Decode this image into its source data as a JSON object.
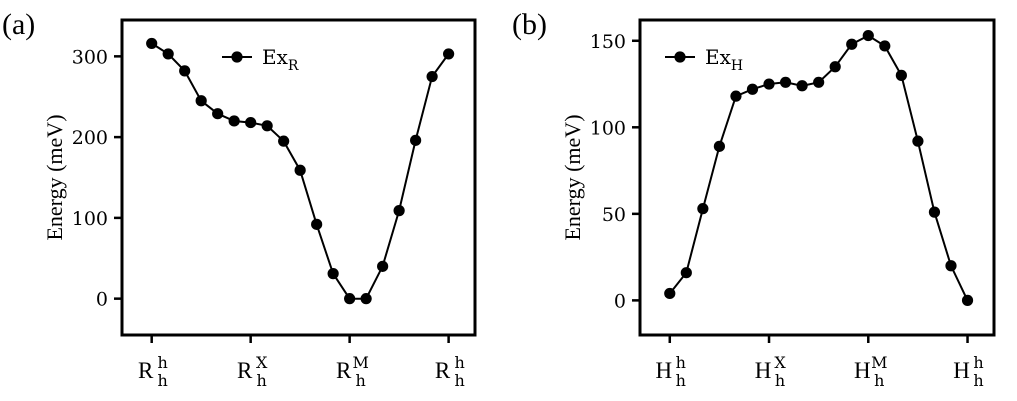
{
  "chart_data": [
    {
      "type": "line",
      "panel_label": "(a)",
      "ylabel": "Energy (meV)",
      "xlabel": "",
      "ylim": [
        -45,
        345
      ],
      "yticks": [
        0,
        100,
        200,
        300
      ],
      "xticks": [
        {
          "x": 0,
          "base": "R",
          "sub": "h",
          "sup": "h"
        },
        {
          "x": 6,
          "base": "R",
          "sub": "h",
          "sup": "X"
        },
        {
          "x": 12,
          "base": "R",
          "sub": "h",
          "sup": "M"
        },
        {
          "x": 18,
          "base": "R",
          "sub": "h",
          "sup": "h"
        }
      ],
      "xlim": [
        -1.8,
        19.6
      ],
      "legend": {
        "base": "Ex",
        "sub": "R",
        "placement": "top-center"
      },
      "series": [
        {
          "name": "ExR",
          "x": [
            0,
            1,
            2,
            3,
            4,
            5,
            6,
            7,
            8,
            9,
            10,
            11,
            12,
            13,
            14,
            15,
            16,
            17,
            18
          ],
          "values": [
            316,
            303,
            282,
            245,
            229,
            220,
            218,
            214,
            195,
            159,
            92,
            31,
            0,
            0,
            40,
            109,
            196,
            275,
            303
          ]
        }
      ]
    },
    {
      "type": "line",
      "panel_label": "(b)",
      "ylabel": "Energy (meV)",
      "xlabel": "",
      "ylim": [
        -20,
        162
      ],
      "yticks": [
        0,
        50,
        100,
        150
      ],
      "xticks": [
        {
          "x": 0,
          "base": "H",
          "sub": "h",
          "sup": "h"
        },
        {
          "x": 6,
          "base": "H",
          "sub": "h",
          "sup": "X"
        },
        {
          "x": 12,
          "base": "H",
          "sub": "h",
          "sup": "M"
        },
        {
          "x": 18,
          "base": "H",
          "sub": "h",
          "sup": "h"
        }
      ],
      "xlim": [
        -1.8,
        19.6
      ],
      "legend": {
        "base": "Ex",
        "sub": "H",
        "placement": "top-left"
      },
      "series": [
        {
          "name": "ExH",
          "x": [
            0,
            1,
            2,
            3,
            4,
            5,
            6,
            7,
            8,
            9,
            10,
            11,
            12,
            13,
            14,
            15,
            16,
            17,
            18
          ],
          "values": [
            4,
            16,
            53,
            89,
            118,
            122,
            125,
            126,
            124,
            126,
            135,
            148,
            153,
            147,
            130,
            92,
            51,
            20,
            0
          ]
        }
      ]
    }
  ]
}
